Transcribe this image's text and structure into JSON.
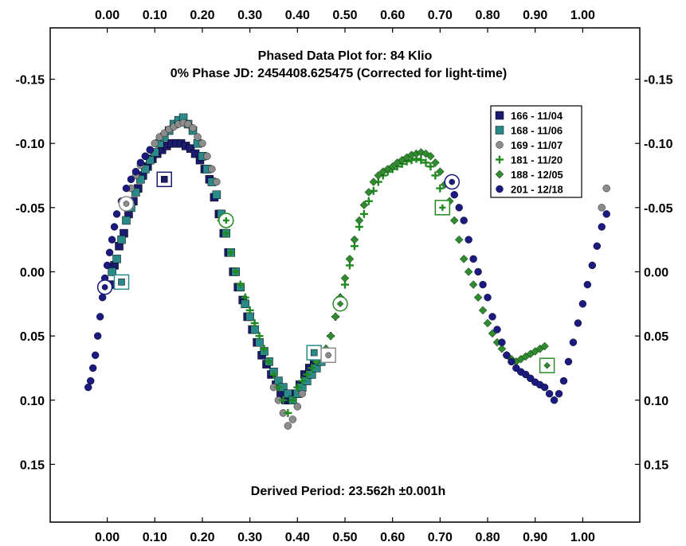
{
  "chart_data": {
    "type": "scatter",
    "title": "Phased Data Plot for: 84 Klio",
    "subtitle": "0% Phase JD:  2454408.625475   (Corrected for light-time)",
    "annotation": "Derived Period: 23.562h   ±0.001h",
    "xlabel": "",
    "ylabel": "",
    "xlim": [
      -0.12,
      1.12
    ],
    "ylim": [
      -0.19,
      0.195
    ],
    "y_inverted": true,
    "grid": false,
    "legend_position": "top-right",
    "x_ticks": [
      "0.00",
      "0.10",
      "0.20",
      "0.30",
      "0.40",
      "0.50",
      "0.60",
      "0.70",
      "0.80",
      "0.90",
      "1.00"
    ],
    "y_ticks": [
      "-0.15",
      "-0.10",
      "-0.05",
      "0.00",
      "0.05",
      "0.10",
      "0.15"
    ],
    "series": [
      {
        "name": "166 - 11/04",
        "color": "#1a1a6e",
        "marker": "square",
        "x": [
          0.005,
          0.015,
          0.025,
          0.035,
          0.045,
          0.055,
          0.065,
          0.075,
          0.085,
          0.095,
          0.105,
          0.115,
          0.125,
          0.135,
          0.145,
          0.155,
          0.165,
          0.175,
          0.185,
          0.195,
          0.205,
          0.215,
          0.225,
          0.235,
          0.245,
          0.255,
          0.265,
          0.275,
          0.285,
          0.295,
          0.305,
          0.315,
          0.325,
          0.335,
          0.345,
          0.355,
          0.365,
          0.375,
          0.385,
          0.395,
          0.405,
          0.415,
          0.425,
          0.435,
          0.445,
          0.455,
          0.46
        ],
        "y": [
          0.01,
          -0.005,
          -0.02,
          -0.03,
          -0.045,
          -0.055,
          -0.065,
          -0.075,
          -0.082,
          -0.088,
          -0.092,
          -0.095,
          -0.098,
          -0.1,
          -0.1,
          -0.1,
          -0.098,
          -0.096,
          -0.092,
          -0.087,
          -0.08,
          -0.072,
          -0.058,
          -0.045,
          -0.03,
          -0.015,
          0.0,
          0.012,
          0.022,
          0.035,
          0.045,
          0.055,
          0.065,
          0.072,
          0.08,
          0.088,
          0.095,
          0.1,
          0.1,
          0.095,
          0.088,
          0.08,
          0.075,
          0.07,
          0.068,
          0.066,
          0.065
        ]
      },
      {
        "name": "168 - 11/06",
        "color": "#2a8a8a",
        "marker": "square",
        "x": [
          0.01,
          0.02,
          0.03,
          0.04,
          0.05,
          0.06,
          0.07,
          0.08,
          0.09,
          0.1,
          0.11,
          0.12,
          0.13,
          0.14,
          0.15,
          0.16,
          0.17,
          0.18,
          0.19,
          0.2,
          0.21,
          0.22,
          0.23,
          0.24,
          0.25,
          0.26,
          0.27,
          0.28,
          0.29,
          0.3,
          0.31,
          0.32,
          0.33,
          0.34,
          0.35,
          0.36,
          0.37,
          0.38,
          0.39,
          0.4,
          0.41,
          0.42,
          0.43,
          0.44,
          0.45
        ],
        "y": [
          0.0,
          -0.01,
          -0.025,
          -0.04,
          -0.05,
          -0.062,
          -0.072,
          -0.08,
          -0.087,
          -0.093,
          -0.1,
          -0.105,
          -0.11,
          -0.115,
          -0.118,
          -0.12,
          -0.115,
          -0.11,
          -0.1,
          -0.09,
          -0.08,
          -0.07,
          -0.06,
          -0.045,
          -0.03,
          -0.015,
          0.0,
          0.012,
          0.025,
          0.035,
          0.045,
          0.055,
          0.062,
          0.07,
          0.078,
          0.085,
          0.09,
          0.095,
          0.1,
          0.095,
          0.09,
          0.085,
          0.08,
          0.075,
          0.07
        ]
      },
      {
        "name": "169 - 11/07",
        "color": "#8c8c8c",
        "marker": "circle",
        "x": [
          0.04,
          0.05,
          0.06,
          0.07,
          0.08,
          0.09,
          0.1,
          0.11,
          0.12,
          0.13,
          0.14,
          0.15,
          0.16,
          0.17,
          0.18,
          0.19,
          0.2,
          0.21,
          0.22,
          0.23,
          0.35,
          0.36,
          0.37,
          0.38,
          0.39,
          0.4,
          0.41,
          1.04,
          1.05
        ],
        "y": [
          -0.055,
          -0.065,
          -0.075,
          -0.083,
          -0.09,
          -0.095,
          -0.1,
          -0.105,
          -0.108,
          -0.111,
          -0.113,
          -0.115,
          -0.116,
          -0.115,
          -0.112,
          -0.105,
          -0.1,
          -0.09,
          -0.08,
          -0.07,
          0.09,
          0.1,
          0.11,
          0.12,
          0.115,
          0.105,
          0.095,
          -0.05,
          -0.065
        ]
      },
      {
        "name": "181 - 11/20",
        "color": "#1f8a1f",
        "marker": "plus",
        "x": [
          0.24,
          0.25,
          0.26,
          0.27,
          0.28,
          0.29,
          0.3,
          0.31,
          0.32,
          0.33,
          0.34,
          0.35,
          0.36,
          0.37,
          0.38,
          0.39,
          0.4,
          0.41,
          0.42,
          0.43,
          0.44,
          0.45,
          0.46,
          0.47,
          0.48,
          0.49,
          0.5,
          0.51,
          0.52,
          0.53,
          0.54,
          0.55,
          0.56,
          0.57,
          0.58,
          0.59,
          0.6,
          0.61,
          0.62,
          0.63,
          0.64,
          0.65,
          0.66,
          0.67,
          0.68,
          0.69,
          0.7,
          0.71
        ],
        "y": [
          -0.04,
          -0.03,
          -0.015,
          0.0,
          0.01,
          0.02,
          0.03,
          0.04,
          0.05,
          0.06,
          0.07,
          0.08,
          0.09,
          0.1,
          0.11,
          0.1,
          0.09,
          0.085,
          0.08,
          0.075,
          0.07,
          0.065,
          0.06,
          0.05,
          0.035,
          0.02,
          0.01,
          -0.005,
          -0.02,
          -0.035,
          -0.045,
          -0.055,
          -0.063,
          -0.07,
          -0.075,
          -0.078,
          -0.08,
          -0.082,
          -0.084,
          -0.086,
          -0.087,
          -0.088,
          -0.087,
          -0.085,
          -0.082,
          -0.075,
          -0.065,
          -0.05
        ]
      },
      {
        "name": "188 - 12/05",
        "color": "#2e8b2e",
        "marker": "diamond",
        "x": [
          0.44,
          0.45,
          0.46,
          0.47,
          0.48,
          0.49,
          0.5,
          0.51,
          0.52,
          0.53,
          0.54,
          0.55,
          0.56,
          0.57,
          0.58,
          0.59,
          0.6,
          0.61,
          0.62,
          0.63,
          0.64,
          0.65,
          0.66,
          0.67,
          0.68,
          0.69,
          0.7,
          0.71,
          0.72,
          0.73,
          0.74,
          0.75,
          0.76,
          0.77,
          0.78,
          0.79,
          0.8,
          0.81,
          0.82,
          0.83,
          0.84,
          0.85,
          0.86,
          0.87,
          0.88,
          0.89,
          0.9,
          0.91,
          0.92
        ],
        "y": [
          0.07,
          0.065,
          0.06,
          0.05,
          0.035,
          0.02,
          0.005,
          -0.01,
          -0.025,
          -0.04,
          -0.052,
          -0.062,
          -0.07,
          -0.075,
          -0.078,
          -0.08,
          -0.082,
          -0.085,
          -0.087,
          -0.089,
          -0.091,
          -0.092,
          -0.093,
          -0.092,
          -0.09,
          -0.085,
          -0.078,
          -0.068,
          -0.055,
          -0.04,
          -0.025,
          -0.01,
          0.0,
          0.01,
          0.02,
          0.03,
          0.04,
          0.048,
          0.055,
          0.06,
          0.065,
          0.068,
          0.07,
          0.068,
          0.066,
          0.064,
          0.062,
          0.06,
          0.058
        ]
      },
      {
        "name": "201 - 12/18",
        "color": "#1a1a80",
        "marker": "circle",
        "x": [
          -0.04,
          -0.035,
          -0.03,
          -0.025,
          -0.02,
          -0.015,
          -0.01,
          -0.005,
          0.0,
          0.005,
          0.01,
          0.015,
          0.02,
          0.03,
          0.04,
          0.05,
          0.06,
          0.07,
          0.08,
          0.09,
          0.72,
          0.73,
          0.74,
          0.75,
          0.76,
          0.77,
          0.78,
          0.79,
          0.8,
          0.81,
          0.82,
          0.83,
          0.84,
          0.85,
          0.86,
          0.87,
          0.88,
          0.89,
          0.9,
          0.91,
          0.92,
          0.93,
          0.94,
          0.95,
          0.96,
          0.97,
          0.98,
          0.99,
          1.0,
          1.01,
          1.02,
          1.03,
          1.04,
          1.05
        ],
        "y": [
          0.09,
          0.085,
          0.075,
          0.065,
          0.05,
          0.035,
          0.02,
          0.005,
          -0.005,
          -0.015,
          -0.025,
          -0.035,
          -0.045,
          -0.055,
          -0.065,
          -0.072,
          -0.078,
          -0.085,
          -0.09,
          -0.095,
          -0.07,
          -0.06,
          -0.05,
          -0.04,
          -0.025,
          -0.01,
          0.0,
          0.01,
          0.02,
          0.035,
          0.045,
          0.055,
          0.065,
          0.07,
          0.075,
          0.078,
          0.08,
          0.083,
          0.086,
          0.088,
          0.09,
          0.095,
          0.1,
          0.095,
          0.085,
          0.07,
          0.055,
          0.04,
          0.025,
          0.01,
          -0.005,
          -0.02,
          -0.035,
          -0.045
        ]
      }
    ],
    "highlighted": [
      {
        "series": 0,
        "x": 0.12,
        "y": -0.072,
        "shape": "square"
      },
      {
        "series": 5,
        "x": -0.005,
        "y": 0.012,
        "shape": "circle"
      },
      {
        "series": 1,
        "x": 0.03,
        "y": 0.008,
        "shape": "square"
      },
      {
        "series": 2,
        "x": 0.04,
        "y": -0.053,
        "shape": "circle"
      },
      {
        "series": 3,
        "x": 0.25,
        "y": -0.04,
        "shape": "circle"
      },
      {
        "series": 1,
        "x": 0.435,
        "y": 0.063,
        "shape": "square"
      },
      {
        "series": 2,
        "x": 0.465,
        "y": 0.065,
        "shape": "square"
      },
      {
        "series": 4,
        "x": 0.49,
        "y": 0.025,
        "shape": "circle"
      },
      {
        "series": 3,
        "x": 0.705,
        "y": -0.05,
        "shape": "square"
      },
      {
        "series": 5,
        "x": 0.725,
        "y": -0.07,
        "shape": "circle"
      },
      {
        "series": 4,
        "x": 0.925,
        "y": 0.073,
        "shape": "square"
      }
    ]
  }
}
